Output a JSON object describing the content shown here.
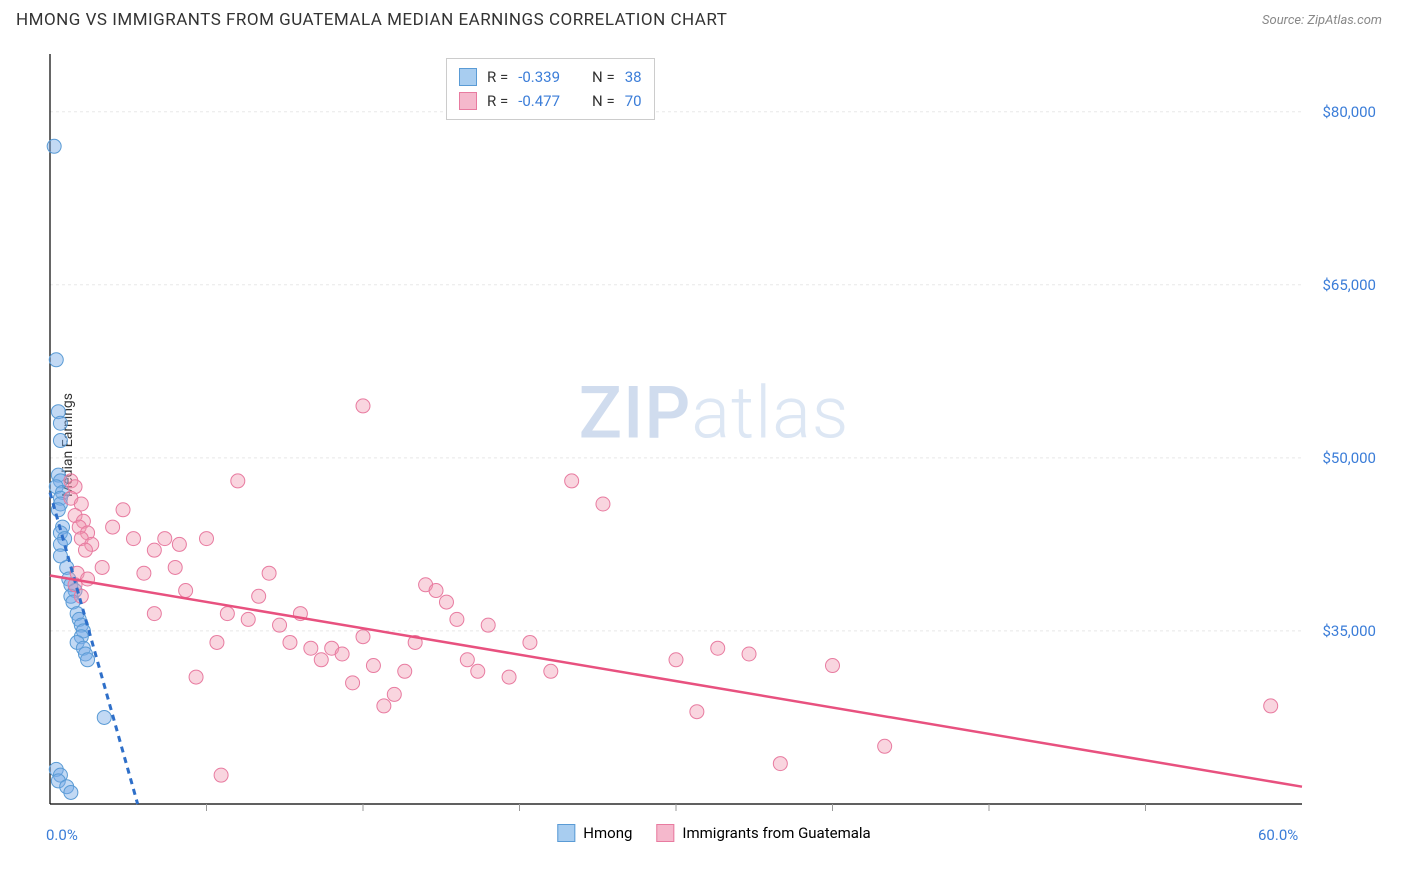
{
  "title": "HMONG VS IMMIGRANTS FROM GUATEMALA MEDIAN EARNINGS CORRELATION CHART",
  "source": "Source: ZipAtlas.com",
  "watermark_bold": "ZIP",
  "watermark_rest": "atlas",
  "y_axis_label": "Median Earnings",
  "chart": {
    "type": "scatter",
    "background_color": "#ffffff",
    "grid_color": "#e8e8e8",
    "axis_color": "#000000",
    "xlim": [
      0,
      60
    ],
    "ylim": [
      20000,
      85000
    ],
    "x_ticks": [
      0,
      60
    ],
    "x_tick_labels": [
      "0.0%",
      "60.0%"
    ],
    "x_minor_ticks": [
      7.5,
      15,
      22.5,
      30,
      37.5,
      45,
      52.5
    ],
    "y_ticks": [
      35000,
      50000,
      65000,
      80000
    ],
    "y_tick_labels": [
      "$35,000",
      "$50,000",
      "$65,000",
      "$80,000"
    ],
    "marker_radius": 7,
    "series": [
      {
        "name": "Hmong",
        "color_fill": "rgba(120,170,230,0.45)",
        "color_stroke": "#5a9bd5",
        "swatch_fill": "#a8cdf0",
        "swatch_border": "#5a9bd5",
        "r_value": "-0.339",
        "n_value": "38",
        "trend": {
          "x1": 0,
          "y1": 47000,
          "x2": 4.2,
          "y2": 20000,
          "color": "#2e6fc9",
          "width": 3,
          "dash": "6 5"
        },
        "points": [
          [
            0.2,
            77000
          ],
          [
            0.3,
            58500
          ],
          [
            0.4,
            54000
          ],
          [
            0.5,
            53000
          ],
          [
            0.5,
            51500
          ],
          [
            0.4,
            48500
          ],
          [
            0.5,
            48000
          ],
          [
            0.3,
            47500
          ],
          [
            0.6,
            47000
          ],
          [
            0.5,
            46500
          ],
          [
            0.5,
            46000
          ],
          [
            0.4,
            45500
          ],
          [
            0.6,
            44000
          ],
          [
            0.5,
            43500
          ],
          [
            0.7,
            43000
          ],
          [
            0.5,
            42500
          ],
          [
            0.5,
            41500
          ],
          [
            0.8,
            40500
          ],
          [
            0.9,
            39500
          ],
          [
            1.0,
            39000
          ],
          [
            1.2,
            38500
          ],
          [
            1.0,
            38000
          ],
          [
            1.1,
            37500
          ],
          [
            1.3,
            36500
          ],
          [
            1.4,
            36000
          ],
          [
            1.5,
            35500
          ],
          [
            1.6,
            35000
          ],
          [
            1.5,
            34500
          ],
          [
            1.3,
            34000
          ],
          [
            1.6,
            33500
          ],
          [
            1.7,
            33000
          ],
          [
            1.8,
            32500
          ],
          [
            2.6,
            27500
          ],
          [
            0.3,
            23000
          ],
          [
            0.5,
            22500
          ],
          [
            0.4,
            22000
          ],
          [
            0.8,
            21500
          ],
          [
            1.0,
            21000
          ]
        ]
      },
      {
        "name": "Immigrants from Guatemala",
        "color_fill": "rgba(240,150,175,0.4)",
        "color_stroke": "#e87ba0",
        "swatch_fill": "#f5b8cc",
        "swatch_border": "#e87ba0",
        "r_value": "-0.477",
        "n_value": "70",
        "trend": {
          "x1": 0,
          "y1": 39800,
          "x2": 60,
          "y2": 21500,
          "color": "#e8517f",
          "width": 2.5,
          "dash": ""
        },
        "points": [
          [
            1.0,
            48000
          ],
          [
            1.2,
            47500
          ],
          [
            1.0,
            46500
          ],
          [
            1.5,
            46000
          ],
          [
            1.2,
            45000
          ],
          [
            1.6,
            44500
          ],
          [
            1.4,
            44000
          ],
          [
            1.8,
            43500
          ],
          [
            1.5,
            43000
          ],
          [
            2.0,
            42500
          ],
          [
            1.7,
            42000
          ],
          [
            15.0,
            54500
          ],
          [
            2.5,
            40500
          ],
          [
            1.3,
            40000
          ],
          [
            1.8,
            39500
          ],
          [
            1.2,
            39000
          ],
          [
            1.5,
            38000
          ],
          [
            3.0,
            44000
          ],
          [
            4.0,
            43000
          ],
          [
            5.0,
            42000
          ],
          [
            5.5,
            43000
          ],
          [
            6.0,
            40500
          ],
          [
            6.2,
            42500
          ],
          [
            7.5,
            43000
          ],
          [
            9.0,
            48000
          ],
          [
            8.5,
            36500
          ],
          [
            8.0,
            34000
          ],
          [
            9.5,
            36000
          ],
          [
            10.0,
            38000
          ],
          [
            10.5,
            40000
          ],
          [
            11.0,
            35500
          ],
          [
            11.5,
            34000
          ],
          [
            12.0,
            36500
          ],
          [
            12.5,
            33500
          ],
          [
            13.0,
            32500
          ],
          [
            13.5,
            33500
          ],
          [
            14.0,
            33000
          ],
          [
            14.5,
            30500
          ],
          [
            15.0,
            34500
          ],
          [
            15.5,
            32000
          ],
          [
            16.0,
            28500
          ],
          [
            16.5,
            29500
          ],
          [
            17.0,
            31500
          ],
          [
            17.5,
            34000
          ],
          [
            18.0,
            39000
          ],
          [
            18.5,
            38500
          ],
          [
            19.0,
            37500
          ],
          [
            19.5,
            36000
          ],
          [
            20.0,
            32500
          ],
          [
            20.5,
            31500
          ],
          [
            21.0,
            35500
          ],
          [
            22.0,
            31000
          ],
          [
            23.0,
            34000
          ],
          [
            24.0,
            31500
          ],
          [
            25.0,
            48000
          ],
          [
            26.5,
            46000
          ],
          [
            7.0,
            31000
          ],
          [
            8.2,
            22500
          ],
          [
            30.0,
            32500
          ],
          [
            32.0,
            33500
          ],
          [
            33.5,
            33000
          ],
          [
            31.0,
            28000
          ],
          [
            37.5,
            32000
          ],
          [
            40.0,
            25000
          ],
          [
            58.5,
            28500
          ],
          [
            35.0,
            23500
          ],
          [
            5.0,
            36500
          ],
          [
            6.5,
            38500
          ],
          [
            4.5,
            40000
          ],
          [
            3.5,
            45500
          ]
        ]
      }
    ],
    "legend_top": {
      "r_label": "R =",
      "n_label": "N ="
    },
    "legend_bottom_labels": [
      "Hmong",
      "Immigrants from Guatemala"
    ]
  }
}
